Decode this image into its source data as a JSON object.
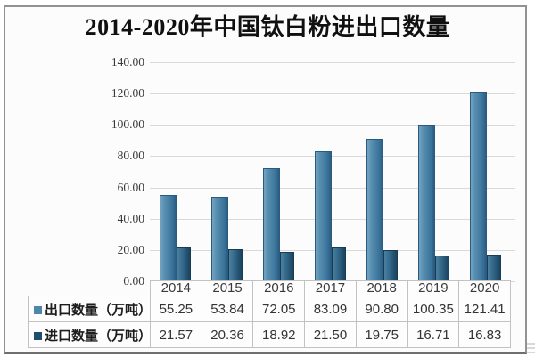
{
  "chart_data": {
    "type": "bar",
    "title": "2014-2020年中国钛白粉进出口数量",
    "categories": [
      "2014",
      "2015",
      "2016",
      "2017",
      "2018",
      "2019",
      "2020"
    ],
    "series": [
      {
        "name": "出口数量（万吨）",
        "values": [
          55.25,
          53.84,
          72.05,
          83.09,
          90.8,
          100.35,
          121.41
        ],
        "display": [
          "55.25",
          "53.84",
          "72.05",
          "83.09",
          "90.80",
          "100.35",
          "121.41"
        ],
        "color": "#4e86ac"
      },
      {
        "name": "进口数量（万吨）",
        "values": [
          21.57,
          20.36,
          18.92,
          21.5,
          19.75,
          16.71,
          16.83
        ],
        "display": [
          "21.57",
          "20.36",
          "18.92",
          "21.50",
          "19.75",
          "16.71",
          "16.83"
        ],
        "color": "#1f4e6b"
      }
    ],
    "xlabel": "",
    "ylabel": "",
    "ylim": [
      0,
      140
    ],
    "ytick_labels": [
      "140.00",
      "120.00",
      "100.00",
      "80.00",
      "60.00",
      "40.00",
      "20.00",
      "0.00"
    ],
    "grid": "horizontal",
    "legend_position": "table-rows-left"
  },
  "colors": {
    "export_bar": "#4e86ac",
    "import_bar": "#1f4e6b",
    "gridline": "#d9d9d9",
    "table_border": "#c2c2c2",
    "card_border": "#929292",
    "text": "#333333"
  }
}
